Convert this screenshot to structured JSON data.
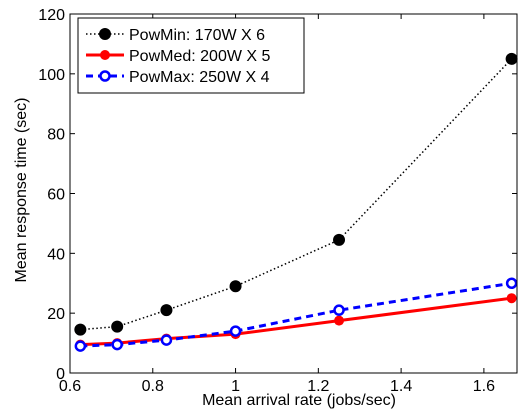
{
  "chart_data": {
    "type": "line",
    "xlabel": "Mean arrival rate (jobs/sec)",
    "ylabel": "Mean response time (sec)",
    "xlim": [
      0.6,
      1.68
    ],
    "ylim": [
      0,
      120
    ],
    "xticks": [
      0.6,
      0.8,
      1,
      1.2,
      1.4,
      1.6
    ],
    "xtick_labels": [
      "0.6",
      "0.8",
      "1",
      "1.2",
      "1.4",
      "1.6"
    ],
    "yticks": [
      0,
      20,
      40,
      60,
      80,
      100,
      120
    ],
    "ytick_labels": [
      "0",
      "20",
      "40",
      "60",
      "80",
      "100",
      "120"
    ],
    "grid": false,
    "legend_position": "top-left",
    "series": [
      {
        "name": "PowMin: 170W X 6",
        "color": "#000000",
        "line_style": "dotted",
        "marker": "filled-circle",
        "x": [
          0.625,
          0.714,
          0.833,
          1.0,
          1.25,
          1.667
        ],
        "y": [
          14.5,
          15.5,
          21,
          29,
          44.5,
          105
        ]
      },
      {
        "name": "PowMed: 200W X 5",
        "color": "#ff0000",
        "line_style": "solid",
        "marker": "filled-circle",
        "x": [
          0.625,
          0.714,
          0.833,
          1.0,
          1.25,
          1.667
        ],
        "y": [
          9.5,
          10,
          11.5,
          13,
          17.5,
          25
        ]
      },
      {
        "name": "PowMax: 250W X 4",
        "color": "#0000ff",
        "line_style": "dashed",
        "marker": "open-circle",
        "x": [
          0.625,
          0.714,
          0.833,
          1.0,
          1.25,
          1.667
        ],
        "y": [
          9,
          9.5,
          11,
          14,
          21,
          30
        ]
      }
    ]
  }
}
